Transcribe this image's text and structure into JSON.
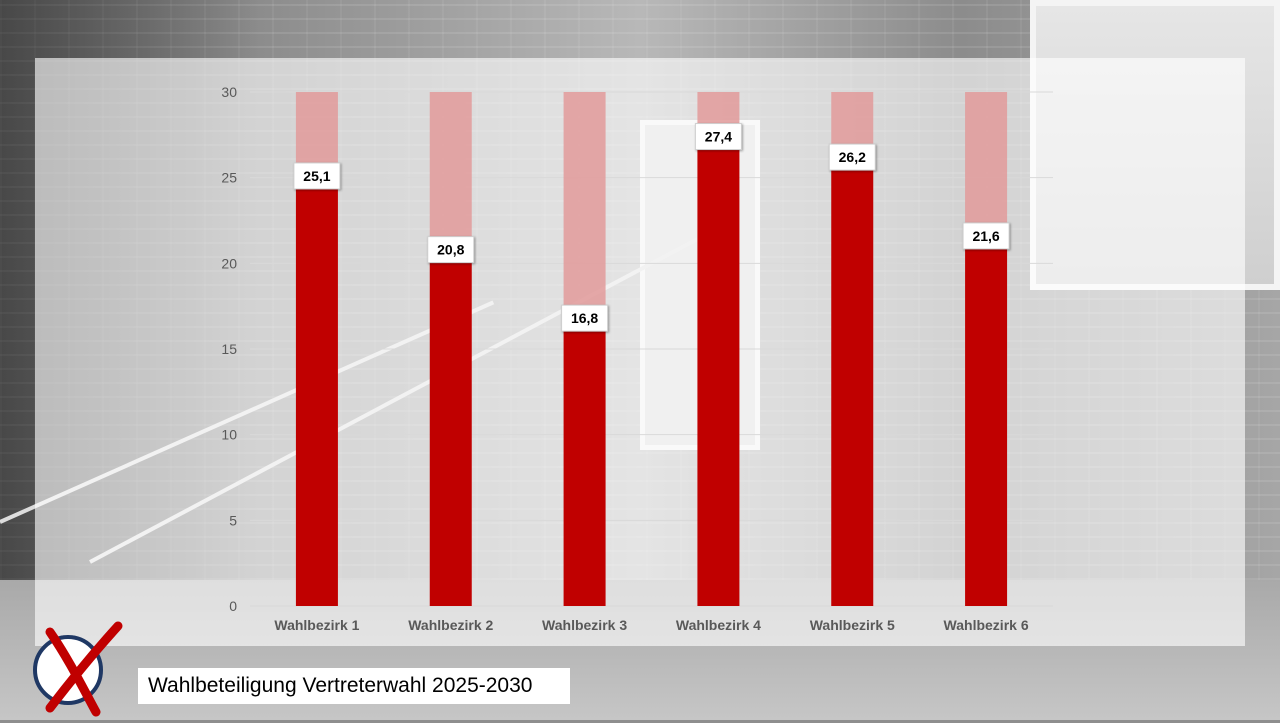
{
  "title": "Wahlbeteiligung Vertreterwahl 2025-2030",
  "colors": {
    "bar": "#c00000",
    "bar_remainder": "#e29a9a",
    "grid": "#d9d9d9",
    "label_box": "#ffffff"
  },
  "logo": {
    "icon": "ballot-cross-icon"
  },
  "chart_data": {
    "type": "bar",
    "title": "",
    "xlabel": "",
    "ylabel": "",
    "ylim": [
      0,
      30
    ],
    "yticks": [
      "0",
      "5",
      "10",
      "15",
      "20",
      "25",
      "30"
    ],
    "categories": [
      "Wahlbezirk 1",
      "Wahlbezirk 2",
      "Wahlbezirk 3",
      "Wahlbezirk 4",
      "Wahlbezirk 5",
      "Wahlbezirk 6"
    ],
    "values": [
      25.1,
      20.8,
      16.8,
      27.4,
      26.2,
      21.6
    ],
    "value_labels": [
      "25,1",
      "20,8",
      "16,8",
      "27,4",
      "26,2",
      "21,6"
    ],
    "background_max": 30,
    "grid": true,
    "legend": "none"
  }
}
